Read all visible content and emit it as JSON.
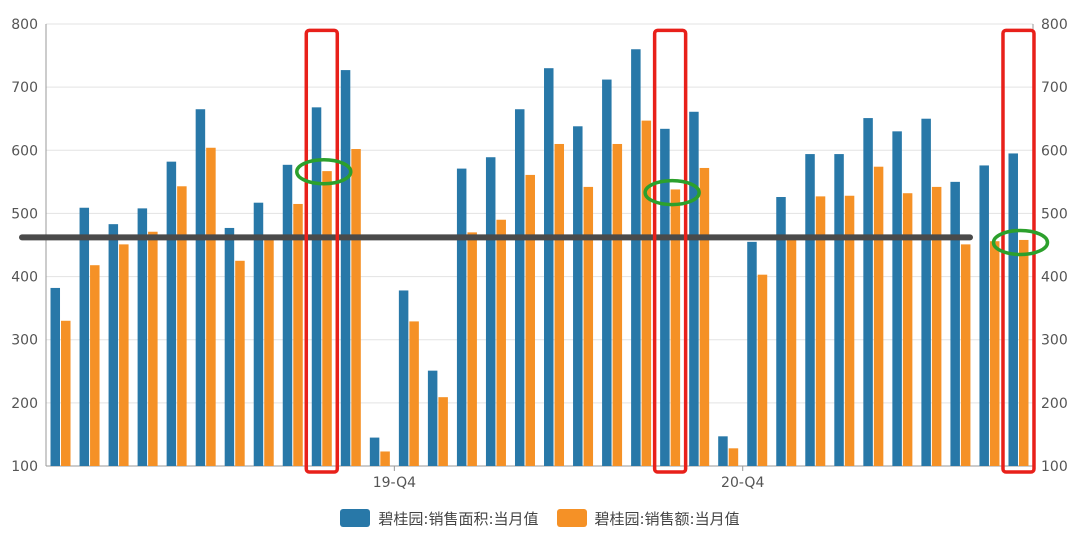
{
  "chart_data": {
    "type": "bar",
    "ylim": [
      100,
      800
    ],
    "yticks": [
      100,
      200,
      300,
      400,
      500,
      600,
      700,
      800
    ],
    "grid": true,
    "legend_position": "bottom-center",
    "x_tick_labels": [
      {
        "label": "19-Q4",
        "index": 11
      },
      {
        "label": "20-Q4",
        "index": 23
      }
    ],
    "series": [
      {
        "name": "碧桂园:销售面积:当月值",
        "color": "#2878a8",
        "values": [
          382,
          509,
          483,
          508,
          582,
          665,
          477,
          517,
          577,
          668,
          727,
          145,
          378,
          251,
          571,
          589,
          665,
          730,
          638,
          712,
          760,
          634,
          661,
          147,
          455,
          526,
          594,
          594,
          651,
          630,
          650,
          550,
          576,
          595
        ]
      },
      {
        "name": "碧桂园:销售额:当月值",
        "color": "#f59126",
        "values": [
          330,
          418,
          451,
          471,
          543,
          604,
          425,
          460,
          515,
          567,
          602,
          123,
          329,
          209,
          470,
          490,
          561,
          610,
          542,
          610,
          647,
          538,
          572,
          128,
          403,
          460,
          527,
          528,
          574,
          532,
          542,
          451,
          456,
          458
        ]
      }
    ],
    "annotations": {
      "reference_line_value": 462,
      "reference_line_color": "#4a4a4a",
      "highlight_box_color": "#e8201a",
      "highlight_boxes": [
        {
          "index": 9
        },
        {
          "index": 21
        },
        {
          "index": 33
        }
      ],
      "ellipse_color": "#2ca02c",
      "ellipses": [
        {
          "index": 9,
          "value": 566
        },
        {
          "index": 21,
          "value": 533
        },
        {
          "index": 33,
          "value": 454
        }
      ]
    }
  }
}
